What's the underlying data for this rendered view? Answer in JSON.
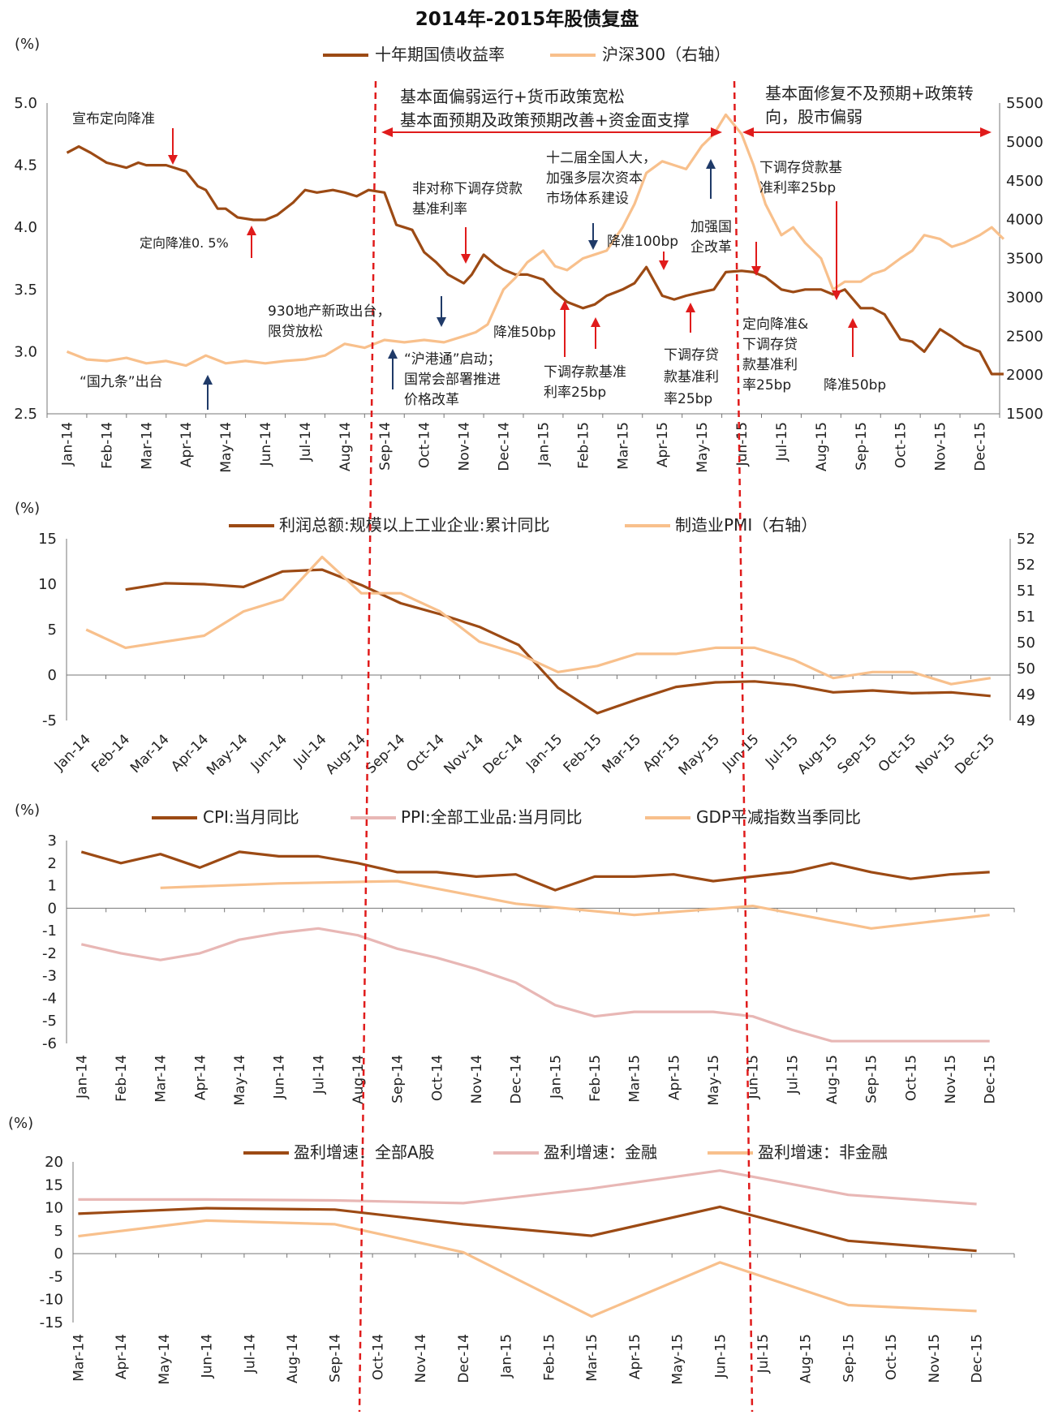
{
  "title": "2014年-2015年股债复盘",
  "colors": {
    "dark_brown": "#9C4A14",
    "light_orange": "#F8C08C",
    "pink": "#E8B7B5",
    "red_line": "#E01B1B",
    "blue_arrow": "#1F3A68",
    "red_arrow": "#E01B1B"
  },
  "months14_15": [
    "Jan-14",
    "Feb-14",
    "Mar-14",
    "Apr-14",
    "May-14",
    "Jun-14",
    "Jul-14",
    "Aug-14",
    "Sep-14",
    "Oct-14",
    "Nov-14",
    "Dec-14",
    "Jan-15",
    "Feb-15",
    "Mar-15",
    "Apr-15",
    "May-15",
    "Jun-15",
    "Jul-15",
    "Aug-15",
    "Sep-15",
    "Oct-15",
    "Nov-15",
    "Dec-15"
  ],
  "months_mar14": [
    "Mar-14",
    "Apr-14",
    "May-14",
    "Jun-14",
    "Jul-14",
    "Aug-14",
    "Sep-14",
    "Oct-14",
    "Nov-14",
    "Dec-14",
    "Jan-15",
    "Feb-15",
    "Mar-15",
    "Apr-15",
    "May-15",
    "Jun-15",
    "Jul-15",
    "Aug-15",
    "Sep-15",
    "Oct-15",
    "Nov-15",
    "Dec-15"
  ],
  "phases": {
    "phase2": [
      "基本面偏弱运行+货币政策宽松",
      "基本面预期及政策预期改善+资金面支撑"
    ],
    "phase3": [
      "基本面修复不及预期+政策转",
      "向，股市偏弱"
    ]
  },
  "chart_data": [
    {
      "type": "line",
      "title": "",
      "unit_left": "(%)",
      "ylim_left": [
        2.5,
        5.0
      ],
      "ylim_right": [
        1500,
        5500
      ],
      "yticks_left": [
        "5.0",
        "4.5",
        "4.0",
        "3.5",
        "3.0",
        "2.5"
      ],
      "yticks_right": [
        "5500",
        "5000",
        "4500",
        "4000",
        "3500",
        "3000",
        "2500",
        "2000",
        "1500"
      ],
      "series": [
        {
          "name": "十年期国债收益率",
          "axis": "left",
          "x": [
            0,
            0.3,
            0.6,
            1,
            1.5,
            1.8,
            2,
            2.5,
            3,
            3.3,
            3.5,
            3.8,
            4,
            4.3,
            4.7,
            5,
            5.3,
            5.7,
            6,
            6.3,
            6.7,
            7,
            7.3,
            7.6,
            8,
            8.3,
            8.5,
            8.7,
            9,
            9.3,
            9.6,
            10,
            10.2,
            10.5,
            10.8,
            11,
            11.3,
            11.6,
            12,
            12.3,
            12.6,
            13,
            13.3,
            13.6,
            14,
            14.3,
            14.6,
            15,
            15.3,
            15.6,
            16,
            16.3,
            16.6,
            17,
            17.3,
            17.6,
            18,
            18.3,
            18.6,
            19,
            19.3,
            19.6,
            20,
            20.3,
            20.6,
            21,
            21.3,
            21.6,
            22,
            22.3,
            22.6,
            23,
            23.3,
            23.6
          ],
          "values": [
            4.6,
            4.65,
            4.6,
            4.52,
            4.48,
            4.52,
            4.5,
            4.5,
            4.45,
            4.33,
            4.3,
            4.15,
            4.15,
            4.08,
            4.06,
            4.06,
            4.1,
            4.2,
            4.3,
            4.28,
            4.3,
            4.28,
            4.25,
            4.3,
            4.28,
            4.02,
            4.0,
            3.98,
            3.8,
            3.72,
            3.62,
            3.55,
            3.62,
            3.78,
            3.7,
            3.66,
            3.62,
            3.62,
            3.58,
            3.48,
            3.4,
            3.35,
            3.38,
            3.45,
            3.5,
            3.55,
            3.68,
            3.45,
            3.42,
            3.45,
            3.48,
            3.5,
            3.64,
            3.65,
            3.64,
            3.6,
            3.5,
            3.48,
            3.5,
            3.5,
            3.46,
            3.5,
            3.35,
            3.35,
            3.3,
            3.1,
            3.08,
            3.0,
            3.18,
            3.12,
            3.05,
            3.0,
            2.82,
            2.82
          ]
        },
        {
          "name": "沪深300（右轴）",
          "axis": "right",
          "x": [
            0,
            0.5,
            1,
            1.5,
            2,
            2.5,
            3,
            3.5,
            4,
            4.5,
            5,
            5.5,
            6,
            6.5,
            7,
            7.5,
            8,
            8.5,
            9,
            9.5,
            10,
            10.3,
            10.6,
            11,
            11.3,
            11.6,
            12,
            12.3,
            12.6,
            13,
            13.3,
            13.6,
            14,
            14.3,
            14.6,
            15,
            15.3,
            15.6,
            16,
            16.3,
            16.6,
            17,
            17.3,
            17.6,
            18,
            18.3,
            18.6,
            19,
            19.3,
            19.6,
            20,
            20.3,
            20.6,
            21,
            21.3,
            21.6,
            22,
            22.3,
            22.6,
            23,
            23.3,
            23.6
          ],
          "values": [
            2300,
            2200,
            2180,
            2220,
            2150,
            2180,
            2120,
            2250,
            2150,
            2180,
            2150,
            2180,
            2200,
            2250,
            2400,
            2350,
            2450,
            2420,
            2450,
            2420,
            2500,
            2550,
            2650,
            3100,
            3250,
            3450,
            3600,
            3400,
            3350,
            3500,
            3550,
            3600,
            3900,
            4200,
            4600,
            4750,
            4700,
            4650,
            4950,
            5100,
            5350,
            5100,
            4700,
            4200,
            3800,
            3900,
            3700,
            3500,
            3100,
            3200,
            3200,
            3300,
            3350,
            3500,
            3600,
            3800,
            3750,
            3650,
            3700,
            3800,
            3900,
            3750
          ]
        }
      ],
      "legend": "top"
    },
    {
      "type": "line",
      "unit_left": "(%)",
      "ylim_left": [
        -5,
        15
      ],
      "ylim_right": [
        49,
        52
      ],
      "yticks_left": [
        "15",
        "10",
        "5",
        "0",
        "-5"
      ],
      "yticks_right": [
        "52",
        "52",
        "51",
        "51",
        "50",
        "50",
        "49",
        "49"
      ],
      "series": [
        {
          "name": "利润总额:规模以上工业企业:累计同比",
          "axis": "left",
          "x": [
            1,
            2,
            3,
            4,
            5,
            6,
            7,
            8,
            9,
            10,
            11,
            12,
            13,
            14,
            15,
            16,
            17,
            18,
            19,
            20,
            21,
            22,
            23
          ],
          "values": [
            9.4,
            10.1,
            10.0,
            9.7,
            11.4,
            11.6,
            9.9,
            7.9,
            6.7,
            5.3,
            3.3,
            -1.4,
            -4.2,
            -2.7,
            -1.3,
            -0.8,
            -0.7,
            -1.1,
            -1.9,
            -1.7,
            -2.0,
            -1.9,
            -2.3
          ]
        },
        {
          "name": "制造业PMI（右轴）",
          "axis": "right",
          "x": [
            0,
            1,
            2,
            3,
            4,
            5,
            6,
            7,
            8,
            9,
            10,
            11,
            12,
            13,
            14,
            15,
            16,
            17,
            18,
            19,
            20,
            21,
            22,
            23
          ],
          "values": [
            50.5,
            50.2,
            50.3,
            50.4,
            50.8,
            51.0,
            51.7,
            51.1,
            51.1,
            50.8,
            50.3,
            50.1,
            49.8,
            49.9,
            50.1,
            50.1,
            50.2,
            50.2,
            50.0,
            49.7,
            49.8,
            49.8,
            49.6,
            49.7
          ]
        }
      ],
      "legend": "top"
    },
    {
      "type": "line",
      "unit_left": "(%)",
      "ylim_left": [
        -6,
        3
      ],
      "yticks_left": [
        "3",
        "2",
        "1",
        "0",
        "-1",
        "-2",
        "-3",
        "-4",
        "-5",
        "-6"
      ],
      "series": [
        {
          "name": "CPI:当月同比",
          "x": [
            0,
            1,
            2,
            3,
            4,
            5,
            6,
            7,
            8,
            9,
            10,
            11,
            12,
            13,
            14,
            15,
            16,
            17,
            18,
            19,
            20,
            21,
            22,
            23
          ],
          "values": [
            2.5,
            2.0,
            2.4,
            1.8,
            2.5,
            2.3,
            2.3,
            2.0,
            1.6,
            1.6,
            1.4,
            1.5,
            0.8,
            1.4,
            1.4,
            1.5,
            1.2,
            1.4,
            1.6,
            2.0,
            1.6,
            1.3,
            1.5,
            1.6
          ]
        },
        {
          "name": "PPI:全部工业品:当月同比",
          "x": [
            0,
            1,
            2,
            3,
            4,
            5,
            6,
            7,
            8,
            9,
            10,
            11,
            12,
            13,
            14,
            15,
            16,
            17,
            18,
            19,
            20,
            21,
            22,
            23
          ],
          "values": [
            -1.6,
            -2.0,
            -2.3,
            -2.0,
            -1.4,
            -1.1,
            -0.9,
            -1.2,
            -1.8,
            -2.2,
            -2.7,
            -3.3,
            -4.3,
            -4.8,
            -4.6,
            -4.6,
            -4.6,
            -4.8,
            -5.4,
            -5.9,
            -5.9,
            -5.9,
            -5.9,
            -5.9
          ]
        },
        {
          "name": "GDP平减指数当季同比",
          "x": [
            2,
            5,
            8,
            11,
            14,
            17,
            20,
            23
          ],
          "values": [
            0.9,
            1.1,
            1.2,
            0.2,
            -0.3,
            0.1,
            -0.9,
            -0.3
          ]
        }
      ],
      "legend": "top"
    },
    {
      "type": "line",
      "unit_left": "(%)",
      "ylim_left": [
        -15,
        20
      ],
      "yticks_left": [
        "20",
        "15",
        "10",
        "5",
        "0",
        "-5",
        "-10",
        "-15"
      ],
      "series": [
        {
          "name": "盈利增速：全部A股",
          "x": [
            0,
            3,
            6,
            9,
            12,
            15,
            18,
            21
          ],
          "values": [
            8.7,
            9.9,
            9.6,
            6.4,
            3.9,
            10.2,
            2.8,
            0.6
          ]
        },
        {
          "name": "盈利增速：金融",
          "x": [
            0,
            3,
            6,
            9,
            12,
            15,
            18,
            21
          ],
          "values": [
            11.8,
            11.8,
            11.6,
            11.0,
            14.2,
            18.1,
            12.8,
            10.8
          ]
        },
        {
          "name": "盈利增速：非金融",
          "x": [
            0,
            3,
            6,
            9,
            12,
            15,
            18,
            21
          ],
          "values": [
            3.8,
            7.2,
            6.4,
            0.3,
            -13.7,
            -1.9,
            -11.2,
            -12.5
          ]
        }
      ],
      "legend": "top"
    }
  ],
  "annotations": {
    "a1": "宣布定向降准",
    "a2": "定向降准0. 5%",
    "a3": "“国九条”出台",
    "a4": [
      "930地产新政出台，",
      "限贷放松"
    ],
    "a5": [
      "“沪港通”启动；",
      "国常会部署推进",
      "价格改革"
    ],
    "a6": [
      "非对称下调存贷款",
      "基准利率"
    ],
    "a7": "降准50bp",
    "a8": [
      "下调存款基准",
      "利率25bp"
    ],
    "a9": [
      "十二届全国人大，",
      "加强多层次资本",
      "市场体系建设"
    ],
    "a10": "降准100bp",
    "a11": [
      "下调存贷",
      "款基准利",
      "率25bp"
    ],
    "a12": [
      "加强国",
      "企改革"
    ],
    "a13": [
      "下调存贷款基",
      "准利率25bp"
    ],
    "a14": [
      "定向降准&",
      "下调存贷",
      "款基准利",
      "率25bp"
    ],
    "a15": "降准50bp"
  }
}
